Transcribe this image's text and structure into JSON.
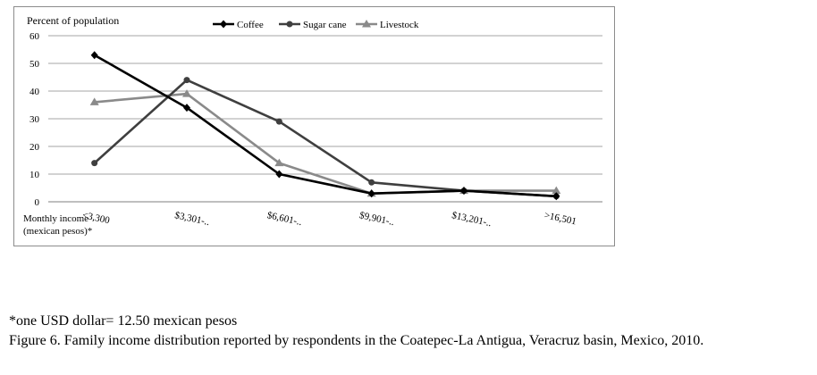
{
  "chart_data": {
    "type": "line",
    "ylabel": "Percent of population",
    "xlabel": "Monthly income (mexican pesos)*",
    "xlabel_lines": [
      "Monthly income",
      "(mexican pesos)*"
    ],
    "categories": [
      "<3,300",
      "$3,301-..",
      "$6,601-..",
      "$9,901-..",
      "$13,201-..",
      ">16,501"
    ],
    "ylim": [
      0,
      60
    ],
    "yticks": [
      "0",
      "10",
      "20",
      "30",
      "40",
      "50",
      "60"
    ],
    "grid": true,
    "legend_position": "top",
    "series": [
      {
        "name": "Coffee",
        "values": [
          53,
          34,
          10,
          3,
          4,
          2
        ],
        "color": "#000000",
        "marker": "diamond"
      },
      {
        "name": "Sugar cane",
        "values": [
          14,
          44,
          29,
          7,
          4,
          2
        ],
        "color": "#3f3f3f",
        "marker": "circle"
      },
      {
        "name": "Livestock",
        "values": [
          36,
          39,
          14,
          3,
          4,
          4
        ],
        "color": "#8a8a8a",
        "marker": "triangle"
      }
    ]
  },
  "footnote": "*one USD dollar= 12.50 mexican pesos",
  "caption": "Figure 6. Family income distribution reported by respondents in the Coatepec-La Antigua, Veracruz basin, Mexico, 2010."
}
